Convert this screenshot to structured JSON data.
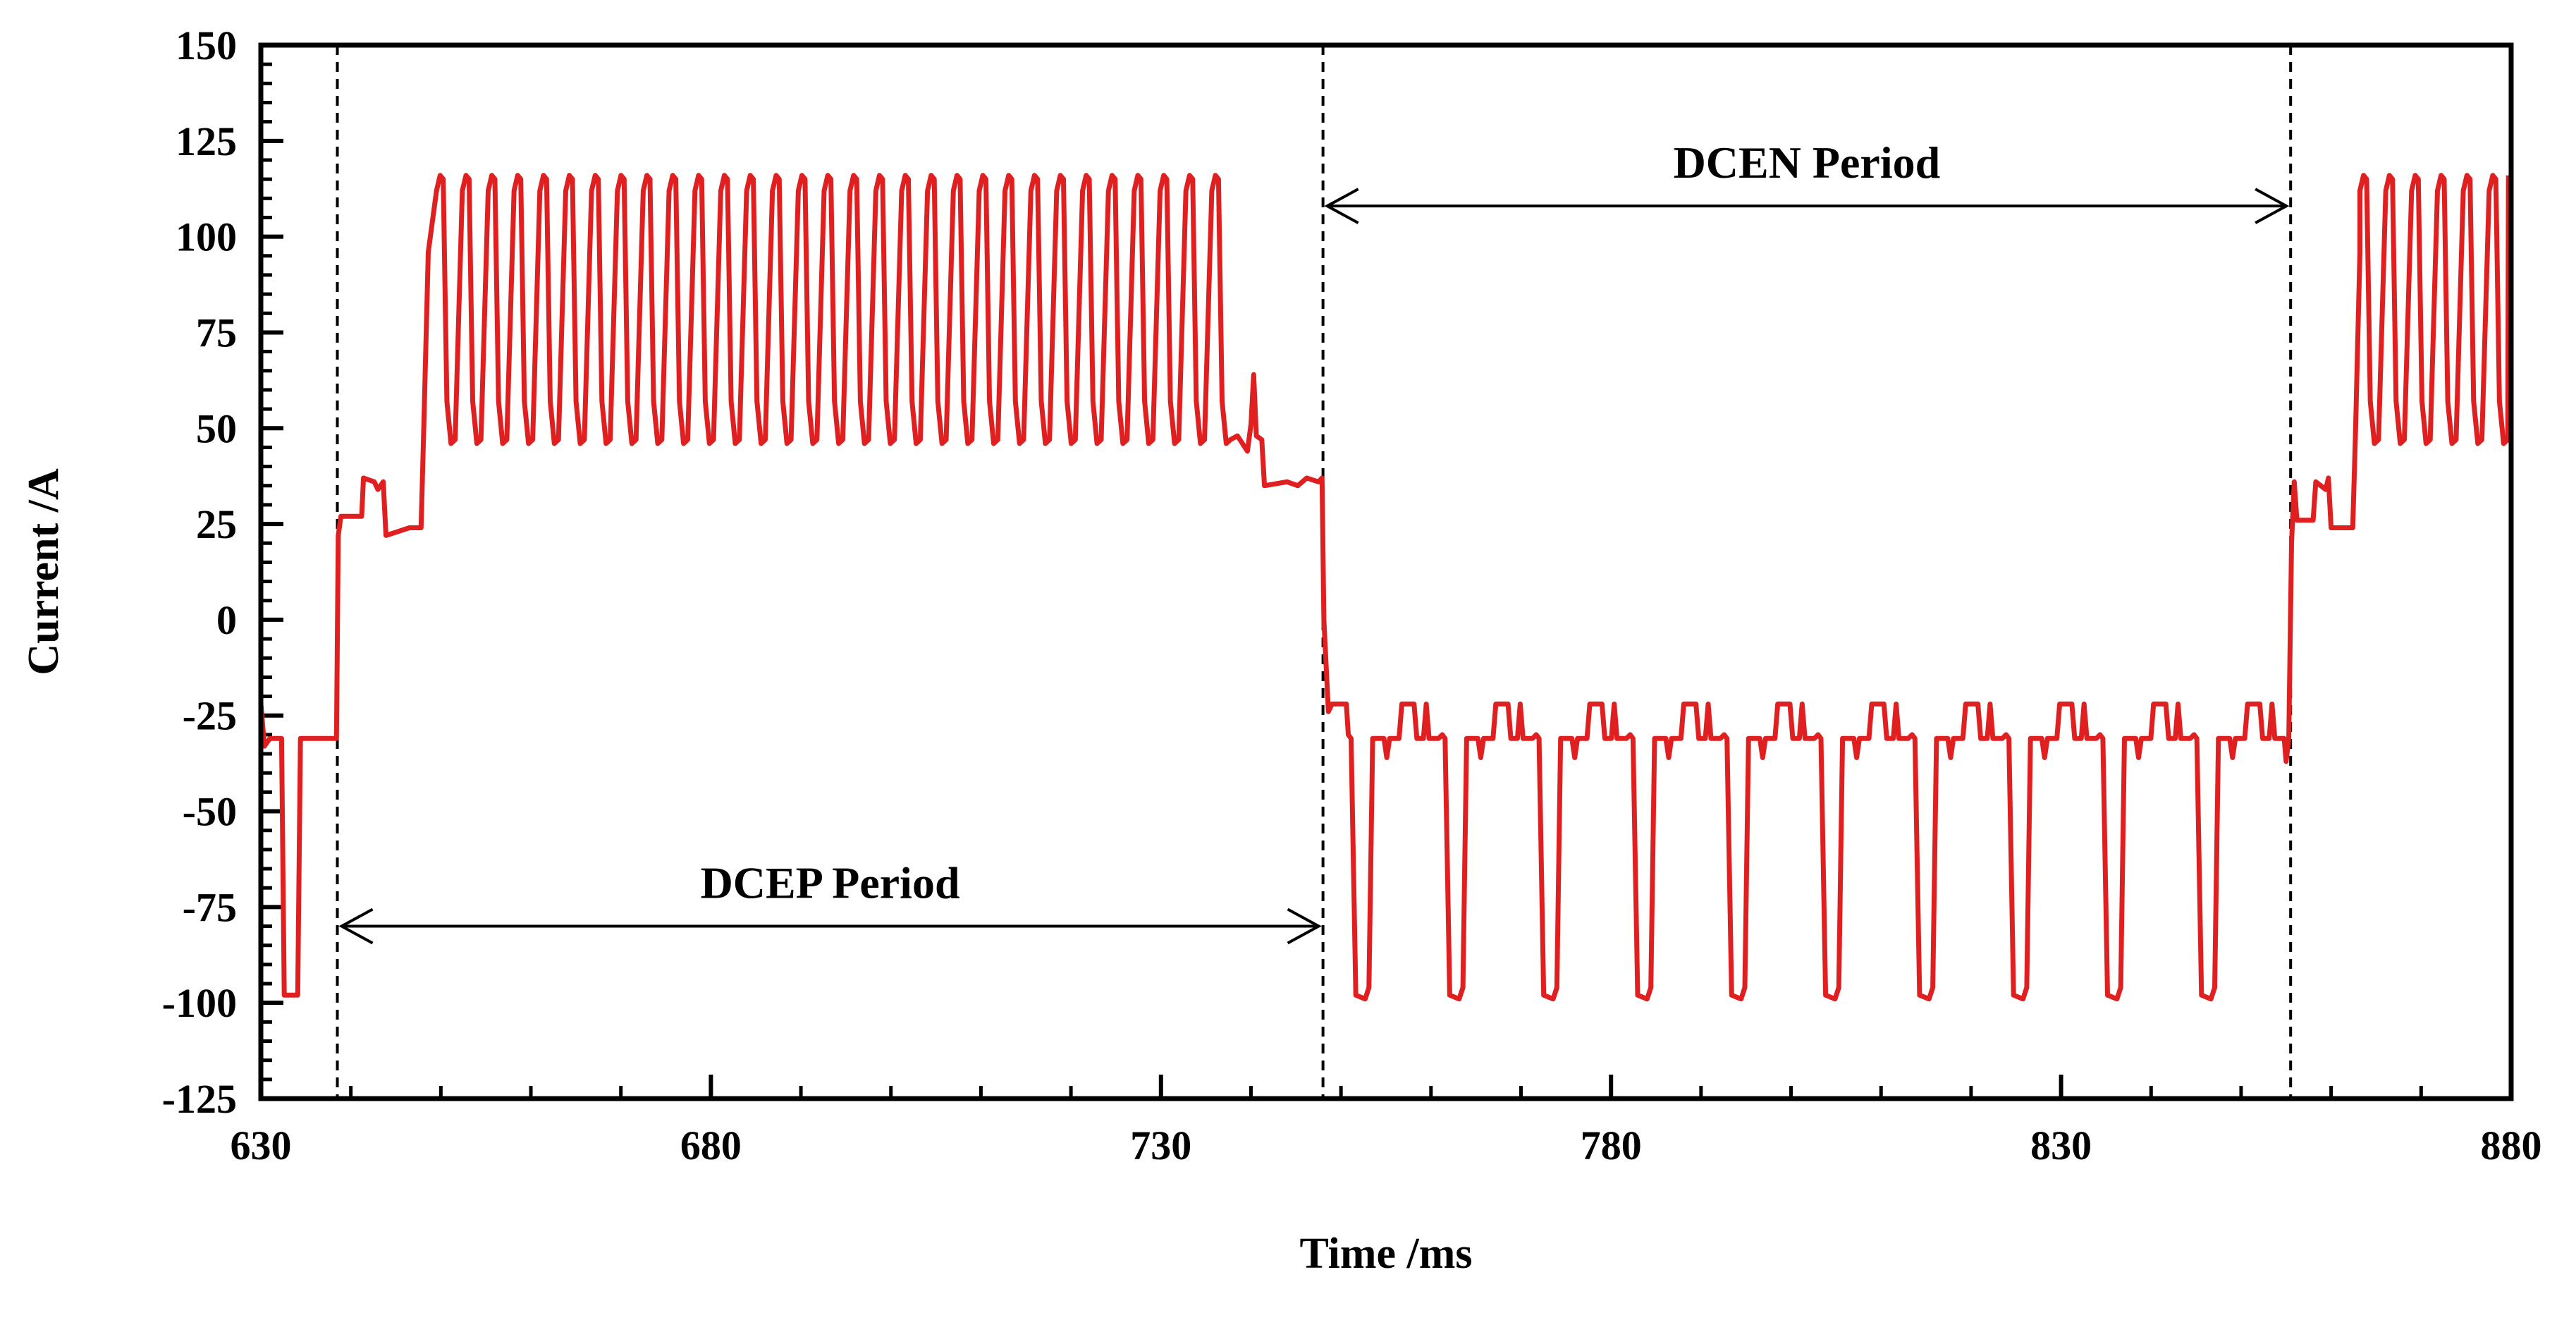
{
  "chart_data": {
    "type": "line",
    "title": "",
    "xlabel": "Time  /ms",
    "ylabel": "Current  /A",
    "xlim": [
      630,
      880
    ],
    "ylim": [
      -125,
      150
    ],
    "x_ticks": [
      630,
      680,
      730,
      780,
      830,
      880
    ],
    "y_ticks": [
      150,
      125,
      100,
      75,
      50,
      25,
      0,
      -25,
      -50,
      -75,
      -100,
      -125
    ],
    "x_minor_step": 10,
    "y_minor_step": 5,
    "grid": false,
    "line_color": "#e02020",
    "series": [
      {
        "name": "Current",
        "description": "Variable polarity pulsed current waveform",
        "segments": {
          "dcen_before": {
            "x_start": 630,
            "x_end": 638.5,
            "base": -31,
            "peak": -98,
            "pulse_width": 1.5
          },
          "dcep_step": {
            "x_start": 638.5,
            "x_end": 649,
            "levels": [
              25,
              36,
              23
            ]
          },
          "dcep_pulses": {
            "x_start": 649,
            "x_end": 738,
            "high": 116,
            "low": 45,
            "count": 31
          },
          "dcep_tail": {
            "x_start": 738,
            "x_end": 748,
            "level": 36,
            "spike": 64
          },
          "dcen_pulses": {
            "x_start": 748,
            "x_end": 855,
            "base": -31,
            "peak": -98,
            "upper": -22,
            "count": 10
          },
          "dcep_after": {
            "x_start": 855,
            "x_end": 880,
            "high": 116,
            "low": 45,
            "count": 8
          }
        }
      }
    ],
    "vertical_markers": [
      638.5,
      748,
      855.5
    ],
    "annotations": [
      {
        "text": "DCEP Period",
        "x_from": 638.5,
        "x_to": 748,
        "y": -80
      },
      {
        "text": "DCEN Period",
        "x_from": 748,
        "x_to": 855.5,
        "y": 108
      }
    ]
  }
}
